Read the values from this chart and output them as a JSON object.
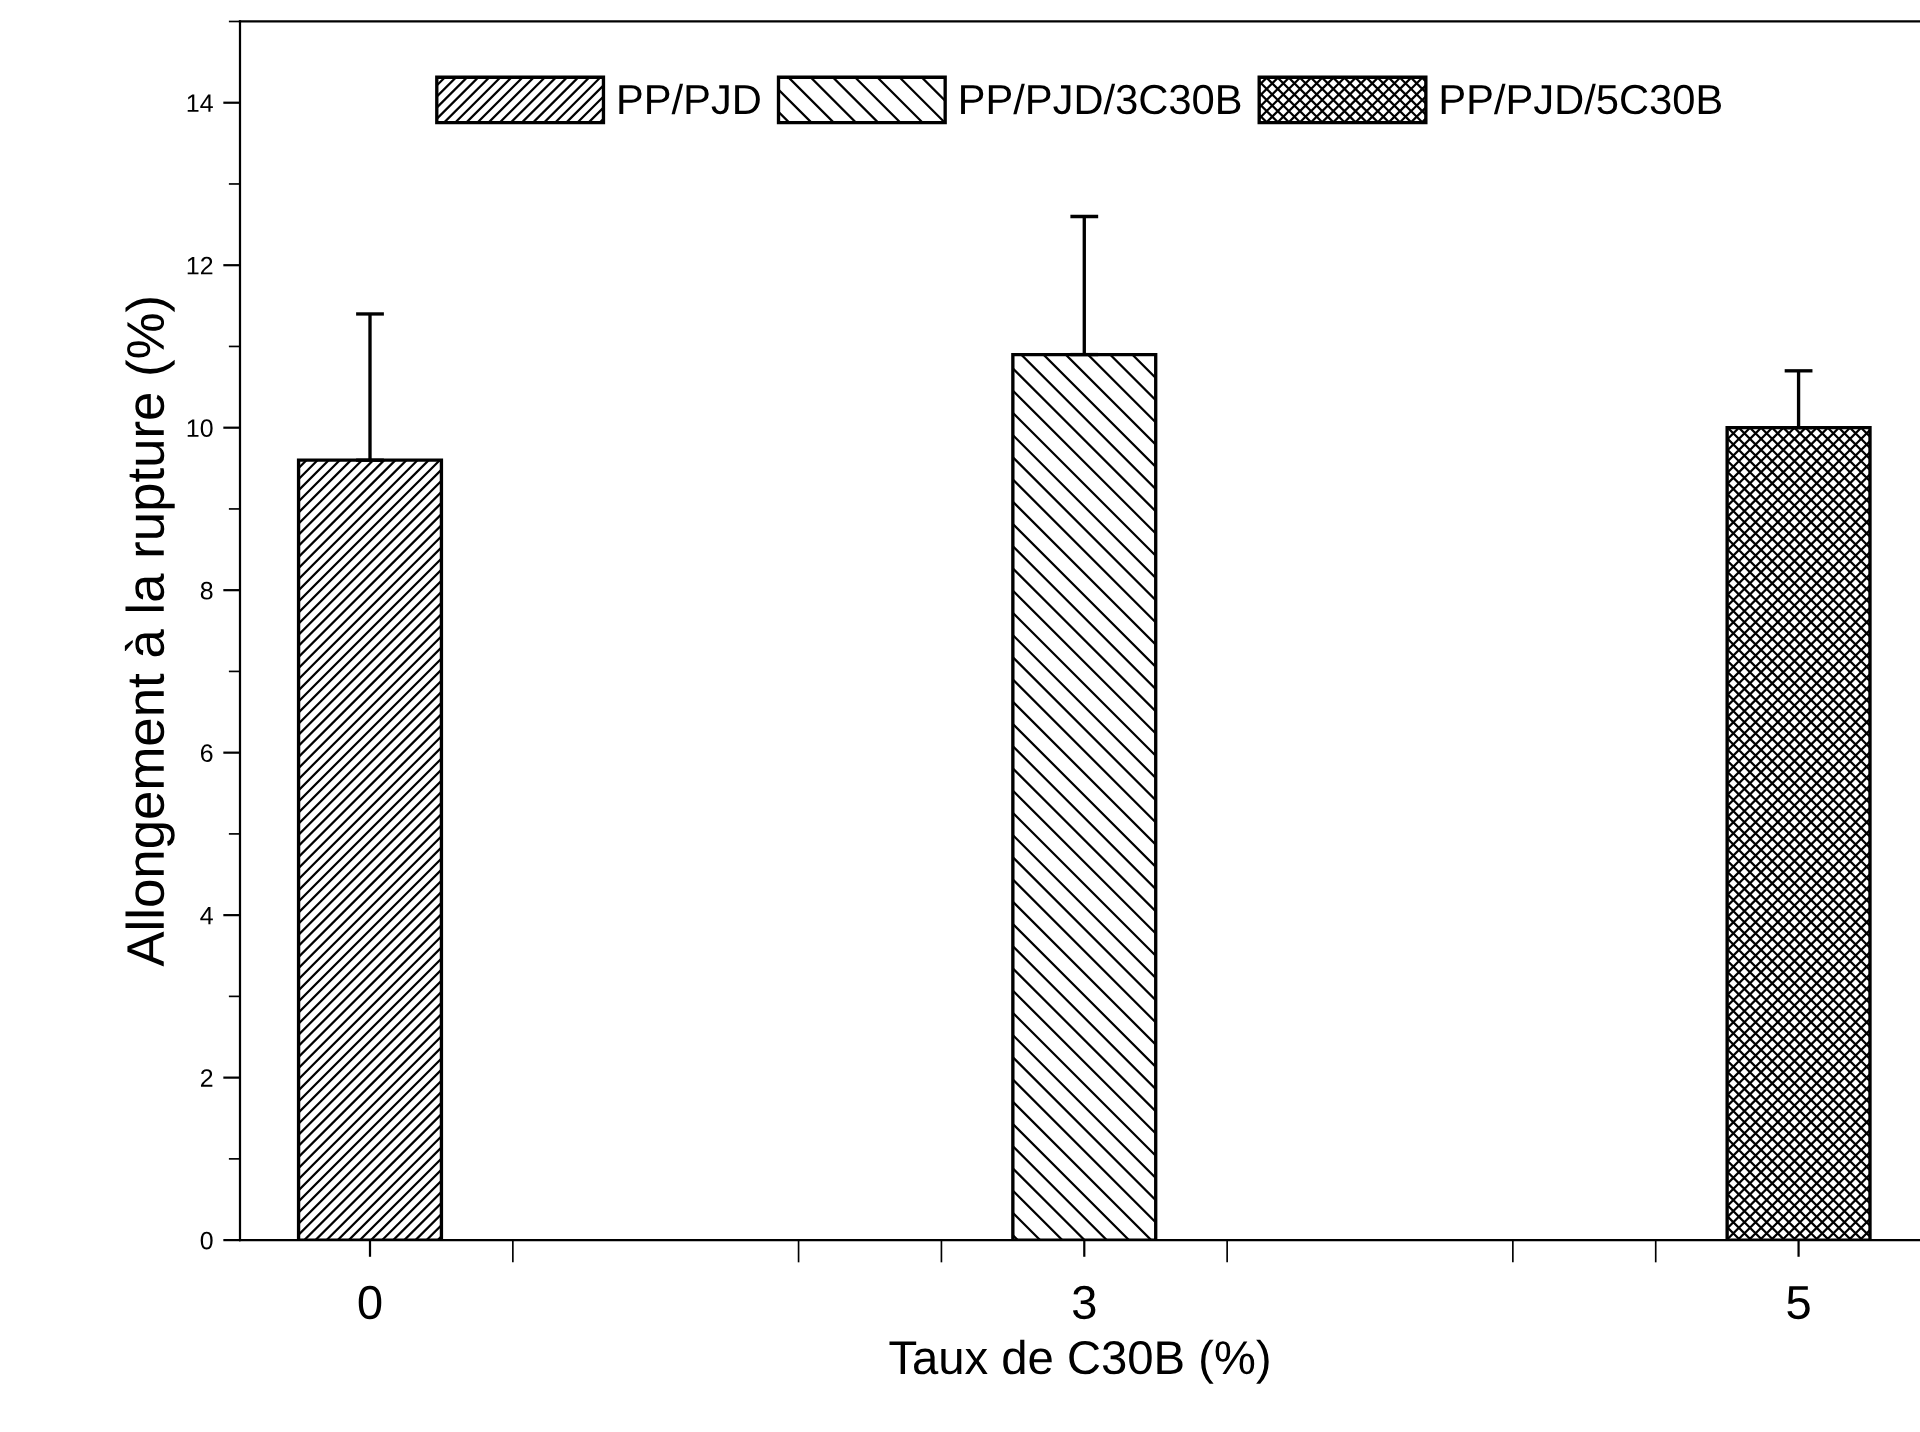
{
  "chart_data": {
    "type": "bar",
    "xlabel": "Taux de C30B (%)",
    "ylabel": "Allongement à la rupture (%)",
    "categories": [
      "0",
      "3",
      "5"
    ],
    "series": [
      {
        "name": "PP/PJD",
        "color": "#000000",
        "values": [
          9.6,
          null,
          null
        ],
        "errors": [
          [
            9.6,
            11.4
          ],
          null,
          null
        ]
      },
      {
        "name": "PP/PJD/3C30B",
        "color": "#000000",
        "values": [
          null,
          10.9,
          null
        ],
        "errors": [
          null,
          [
            10.9,
            12.6
          ],
          null
        ]
      },
      {
        "name": "PP/PJD/5C30B",
        "color": "#000000",
        "values": [
          null,
          null,
          10.0
        ],
        "errors": [
          null,
          null,
          [
            10.0,
            10.7
          ]
        ]
      }
    ],
    "ylim": [
      0,
      15
    ],
    "yticks": [
      0,
      2,
      4,
      6,
      8,
      10,
      12,
      14
    ],
    "grid": false,
    "legend": "top"
  }
}
